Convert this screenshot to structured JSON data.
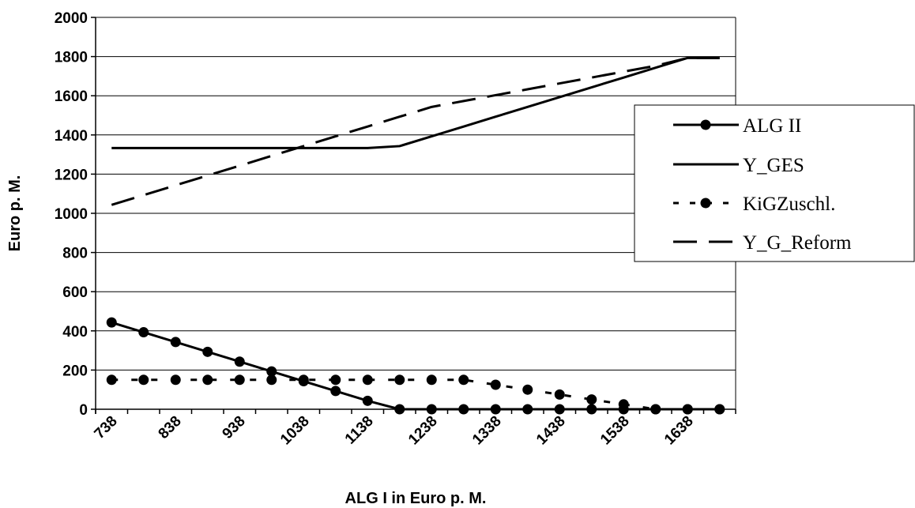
{
  "chart_data": {
    "type": "line",
    "xlabel": "ALG I in Euro p. M.",
    "ylabel": "Euro p. M.",
    "ylim": [
      0,
      2000
    ],
    "y_ticks": [
      0,
      200,
      400,
      600,
      800,
      1000,
      1200,
      1400,
      1600,
      1800,
      2000
    ],
    "x": [
      738,
      788,
      838,
      888,
      938,
      988,
      1038,
      1088,
      1138,
      1188,
      1238,
      1288,
      1338,
      1388,
      1438,
      1488,
      1538,
      1588,
      1638,
      1688
    ],
    "x_tick_labels": [
      "738",
      "838",
      "938",
      "1038",
      "1138",
      "1238",
      "1338",
      "1438",
      "1538",
      "1638"
    ],
    "grid": "horizontal",
    "legend_position": "right",
    "series": [
      {
        "name": "ALG II",
        "style": "solid-markers",
        "values": [
          443,
          393,
          343,
          293,
          243,
          193,
          143,
          93,
          43,
          0,
          0,
          0,
          0,
          0,
          0,
          0,
          0,
          0,
          0,
          0
        ]
      },
      {
        "name": "Y_GES",
        "style": "solid",
        "values": [
          1333,
          1333,
          1333,
          1333,
          1333,
          1333,
          1333,
          1333,
          1333,
          1343,
          1393,
          1443,
          1493,
          1543,
          1593,
          1643,
          1693,
          1743,
          1793,
          1793
        ]
      },
      {
        "name": "KiGZuschl.",
        "style": "dotted-markers",
        "values": [
          150,
          150,
          150,
          150,
          150,
          150,
          150,
          150,
          150,
          150,
          150,
          150,
          125,
          100,
          75,
          50,
          25,
          0,
          0,
          0
        ]
      },
      {
        "name": "Y_G_Reform",
        "style": "long-dash",
        "values": [
          1043,
          1093,
          1143,
          1193,
          1243,
          1293,
          1343,
          1393,
          1443,
          1493,
          1543,
          1573,
          1603,
          1633,
          1663,
          1693,
          1723,
          1753,
          1793,
          1793
        ]
      }
    ]
  }
}
